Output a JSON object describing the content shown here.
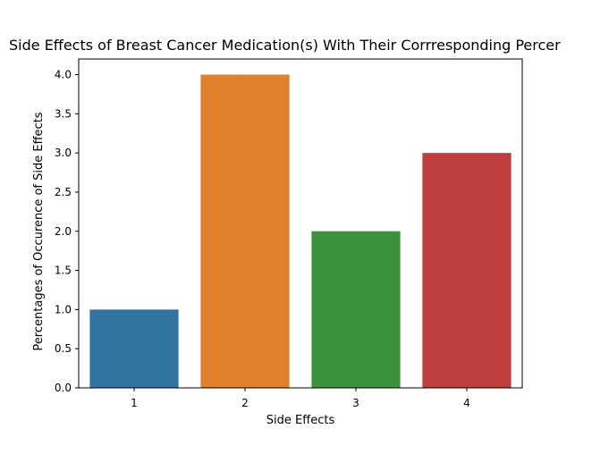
{
  "chart_data": {
    "type": "bar",
    "title": "Side Effects of Breast Cancer Medication(s) With Their Corrresponding Percer",
    "xlabel": "Side Effects",
    "ylabel": "Percentages of Occurence of Side Effects",
    "categories": [
      "1",
      "2",
      "3",
      "4"
    ],
    "values": [
      1.0,
      4.0,
      2.0,
      3.0
    ],
    "colors": [
      "#3274a1",
      "#e1812c",
      "#3a923a",
      "#c03d3e"
    ],
    "ylim": [
      0,
      4.2
    ],
    "yticks": [
      "0.0",
      "0.5",
      "1.0",
      "1.5",
      "2.0",
      "2.5",
      "3.0",
      "3.5",
      "4.0"
    ],
    "grid": false,
    "legend": "none"
  }
}
